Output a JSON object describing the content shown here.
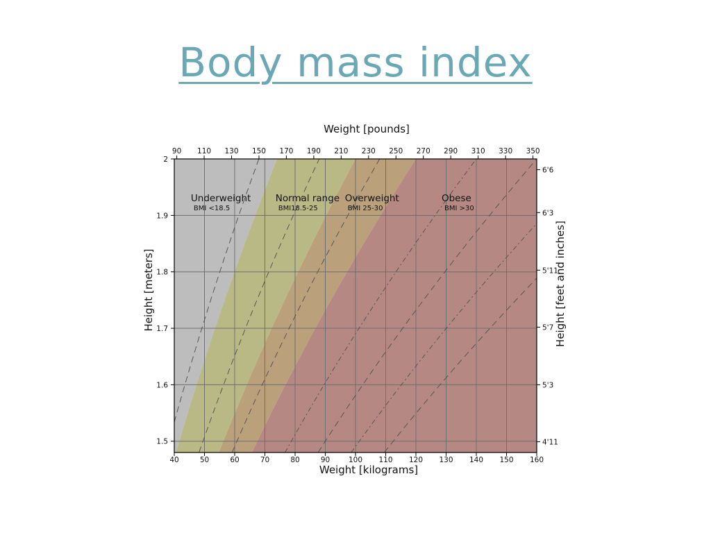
{
  "slide": {
    "title": "Body mass index"
  },
  "chart_data": {
    "type": "area",
    "title": "",
    "x_axis_bottom": {
      "label": "Weight [kilograms]",
      "range": [
        40,
        160
      ],
      "ticks": [
        40,
        50,
        60,
        70,
        80,
        90,
        100,
        110,
        120,
        130,
        140,
        150,
        160
      ]
    },
    "x_axis_top": {
      "label": "Weight [pounds]",
      "ticks": [
        90,
        110,
        130,
        150,
        170,
        190,
        210,
        230,
        250,
        270,
        290,
        310,
        330,
        350
      ]
    },
    "y_axis_left": {
      "label": "Height [meters]",
      "range": [
        1.48,
        2.0
      ],
      "ticks": [
        1.5,
        1.6,
        1.7,
        1.8,
        1.9,
        2
      ]
    },
    "y_axis_right": {
      "label": "Height [feet and inches]",
      "ticks": [
        {
          "label": "4'11",
          "meters": 1.499
        },
        {
          "label": "5'3",
          "meters": 1.6
        },
        {
          "label": "5'7",
          "meters": 1.702
        },
        {
          "label": "5'11",
          "meters": 1.803
        },
        {
          "label": "6'3",
          "meters": 1.905
        },
        {
          "label": "6'6",
          "meters": 1.981
        }
      ]
    },
    "grid": true,
    "regions": [
      {
        "name": "Underweight",
        "sublabel": "BMI <18.5",
        "bmi_min": 0,
        "bmi_max": 18.5,
        "color": "#bdbdbd",
        "label_weight_kg": 45.5,
        "label_height_m": 1.925
      },
      {
        "name": "Normal range",
        "sublabel": "BMI18.5-25",
        "bmi_min": 18.5,
        "bmi_max": 25,
        "color": "#b9b985",
        "label_weight_kg": 73.5,
        "label_height_m": 1.925
      },
      {
        "name": "Overweight",
        "sublabel": "BMI 25-30",
        "bmi_min": 25,
        "bmi_max": 30,
        "color": "#bba07c",
        "label_weight_kg": 96.5,
        "label_height_m": 1.925
      },
      {
        "name": "Obese",
        "sublabel": "BMI >30",
        "bmi_min": 30,
        "bmi_max": 100,
        "color": "#b58883",
        "label_weight_kg": 128.5,
        "label_height_m": 1.925
      }
    ],
    "bmi_contours": [
      {
        "bmi": 17,
        "style": "dashed"
      },
      {
        "bmi": 22,
        "style": "dashed"
      },
      {
        "bmi": 27,
        "style": "dashed"
      },
      {
        "bmi": 35,
        "style": "dashdot"
      },
      {
        "bmi": 40,
        "style": "dashed"
      },
      {
        "bmi": 45,
        "style": "dashdot"
      },
      {
        "bmi": 50,
        "style": "dashed"
      }
    ]
  }
}
